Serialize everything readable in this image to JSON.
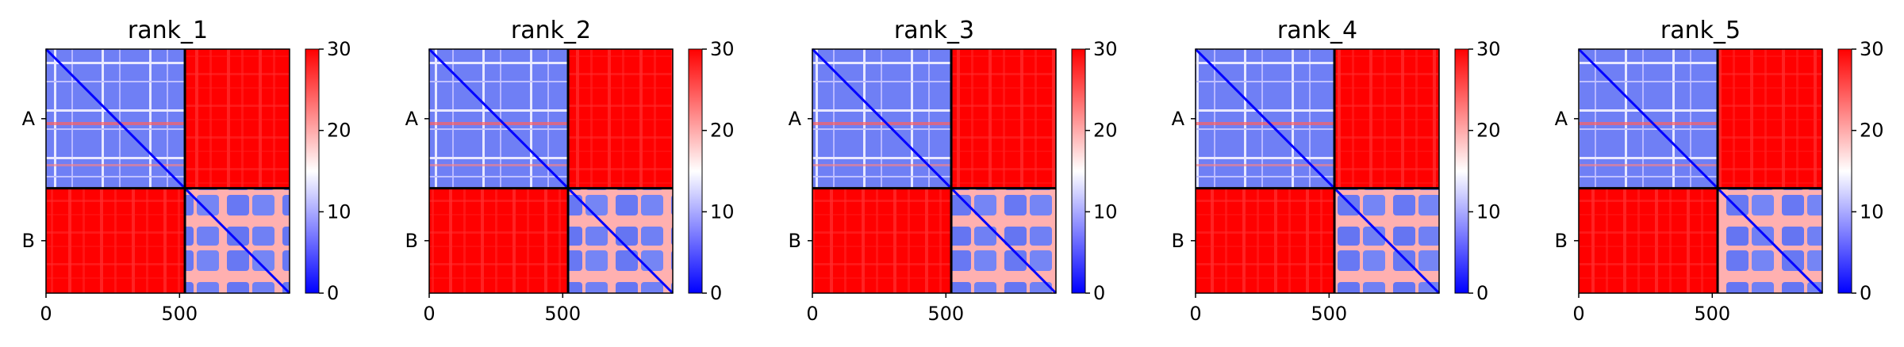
{
  "chart_data": {
    "type": "heatmap",
    "colorbar": {
      "min": 0,
      "max": 30,
      "ticks": [
        0,
        10,
        20,
        30
      ],
      "colormap": "bwr",
      "low_color": "#0000ff",
      "mid_color": "#ffffff",
      "high_color": "#ff0000"
    },
    "x_ticks": [
      0,
      500
    ],
    "chain_labels": [
      "A",
      "B"
    ],
    "matrix_size": 912,
    "chain_boundary": 520,
    "panels": [
      {
        "title": "rank_1"
      },
      {
        "title": "rank_2"
      },
      {
        "title": "rank_3"
      },
      {
        "title": "rank_4"
      },
      {
        "title": "rank_5"
      }
    ]
  }
}
